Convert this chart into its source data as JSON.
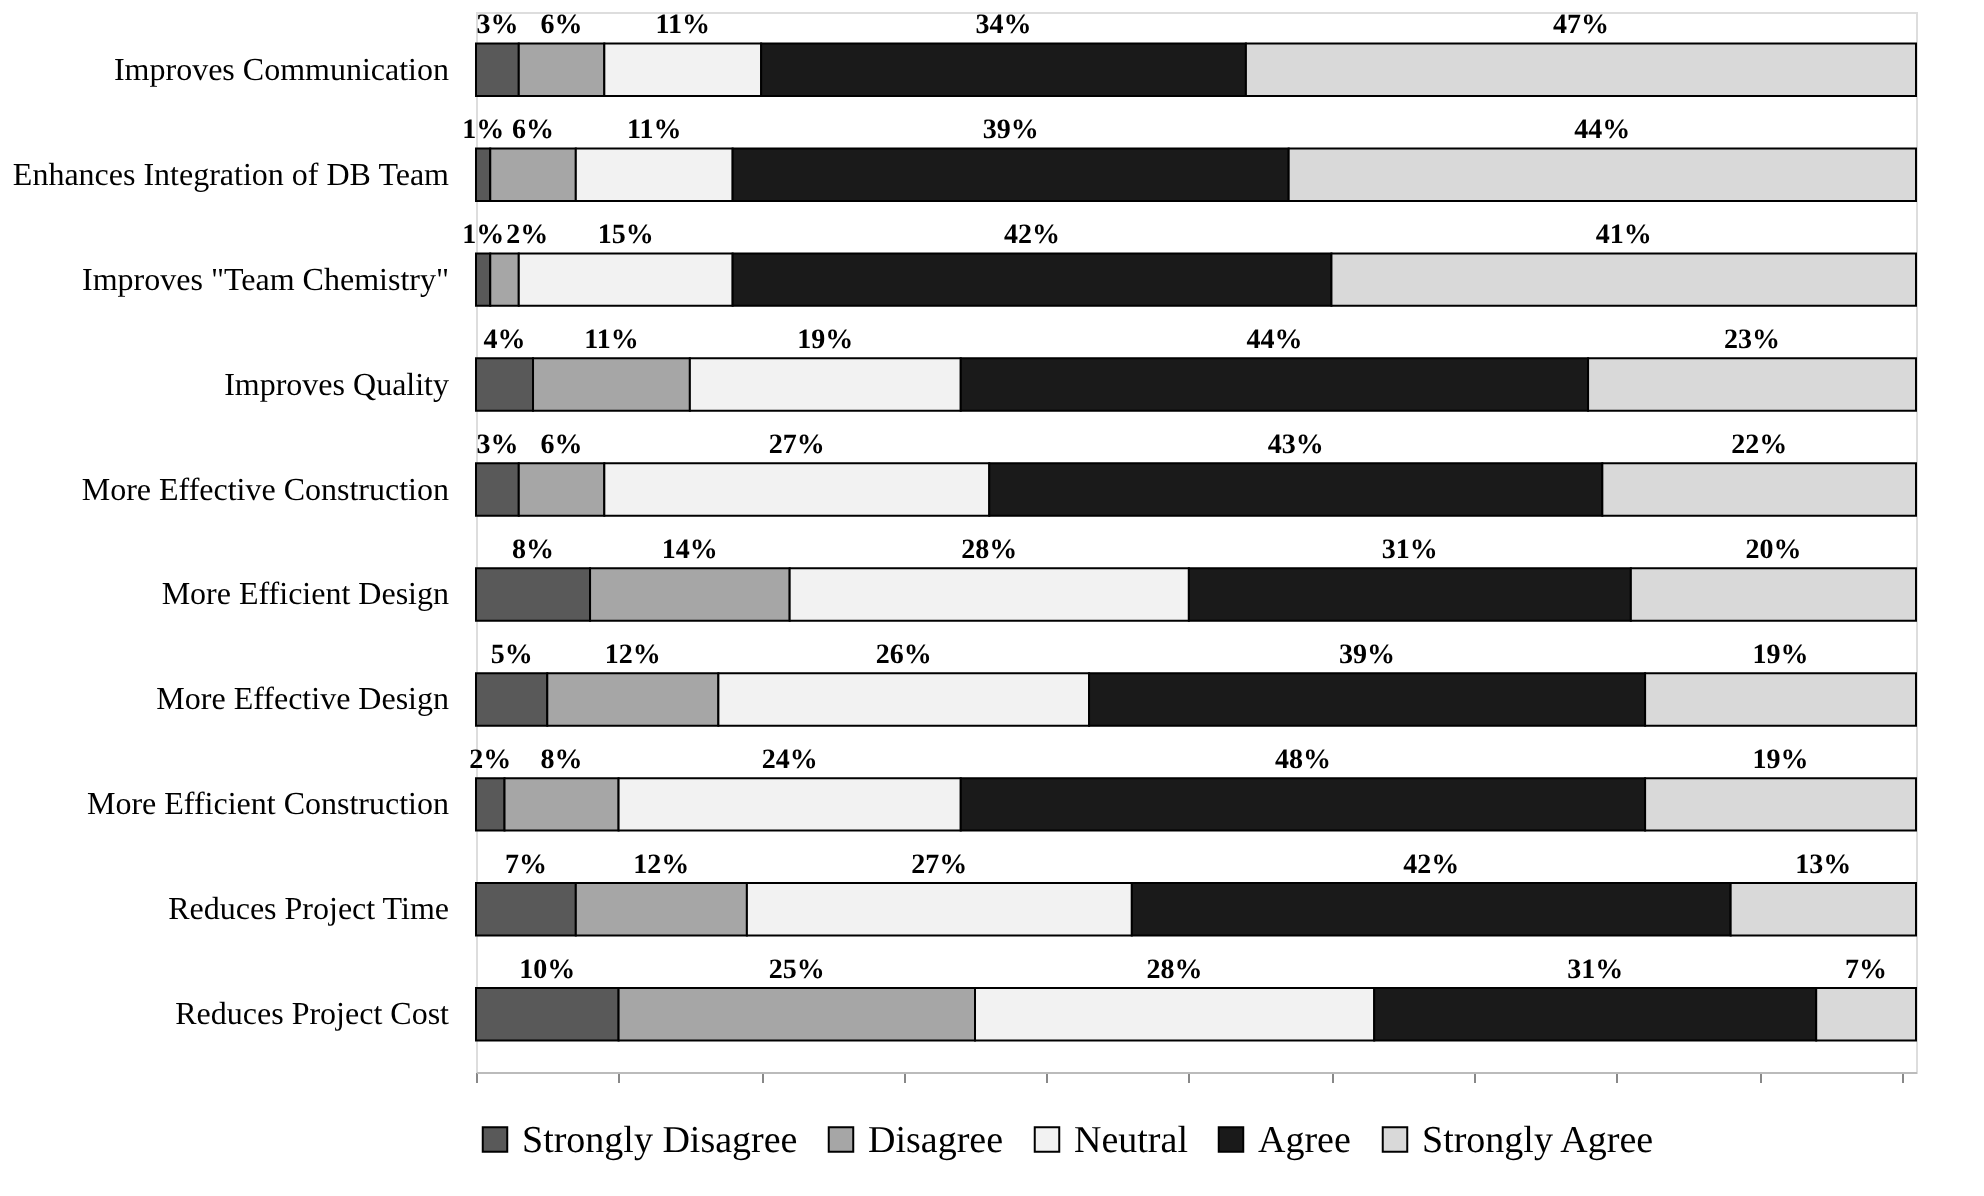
{
  "chart_data": {
    "type": "bar",
    "orientation": "horizontal",
    "stacked": true,
    "legend": "bottom",
    "grid": false,
    "tick_labels": "y",
    "categories": [
      "Improves Communication",
      "Enhances Integration of DB Team",
      "Improves \"Team Chemistry\"",
      "Improves Quality",
      "More Effective Construction",
      "More Efficient Design",
      "More Effective Design",
      "More Efficient Construction",
      "Reduces Project Time",
      "Reduces Project Cost"
    ],
    "series": [
      {
        "name": "Strongly Disagree",
        "color": "#595959",
        "values": [
          3,
          1,
          1,
          4,
          3,
          8,
          5,
          2,
          7,
          10
        ],
        "value_labels": [
          "3%",
          "1%",
          "1%",
          "4%",
          "3%",
          "8%",
          "5%",
          "2%",
          "7%",
          "10%"
        ]
      },
      {
        "name": "Disagree",
        "color": "#a6a6a6",
        "values": [
          6,
          6,
          2,
          11,
          6,
          14,
          12,
          8,
          12,
          25
        ],
        "value_labels": [
          "6%",
          "6%",
          "2%",
          "11%",
          "6%",
          "14%",
          "12%",
          "8%",
          "12%",
          "25%"
        ]
      },
      {
        "name": "Neutral",
        "color": "#f2f2f2",
        "values": [
          11,
          11,
          15,
          19,
          27,
          28,
          26,
          24,
          27,
          28
        ],
        "value_labels": [
          "11%",
          "11%",
          "15%",
          "19%",
          "27%",
          "28%",
          "26%",
          "24%",
          "27%",
          "28%"
        ]
      },
      {
        "name": "Agree",
        "color": "#1a1a1a",
        "values": [
          34,
          39,
          42,
          44,
          43,
          31,
          39,
          48,
          42,
          31
        ],
        "value_labels": [
          "34%",
          "39%",
          "42%",
          "44%",
          "43%",
          "31%",
          "39%",
          "48%",
          "42%",
          "31%"
        ]
      },
      {
        "name": "Strongly Agree",
        "color": "#d9d9d9",
        "values": [
          47,
          44,
          41,
          23,
          22,
          20,
          19,
          19,
          13,
          7
        ],
        "value_labels": [
          "47%",
          "44%",
          "41%",
          "23%",
          "22%",
          "20%",
          "19%",
          "19%",
          "13%",
          "7%"
        ]
      }
    ]
  }
}
